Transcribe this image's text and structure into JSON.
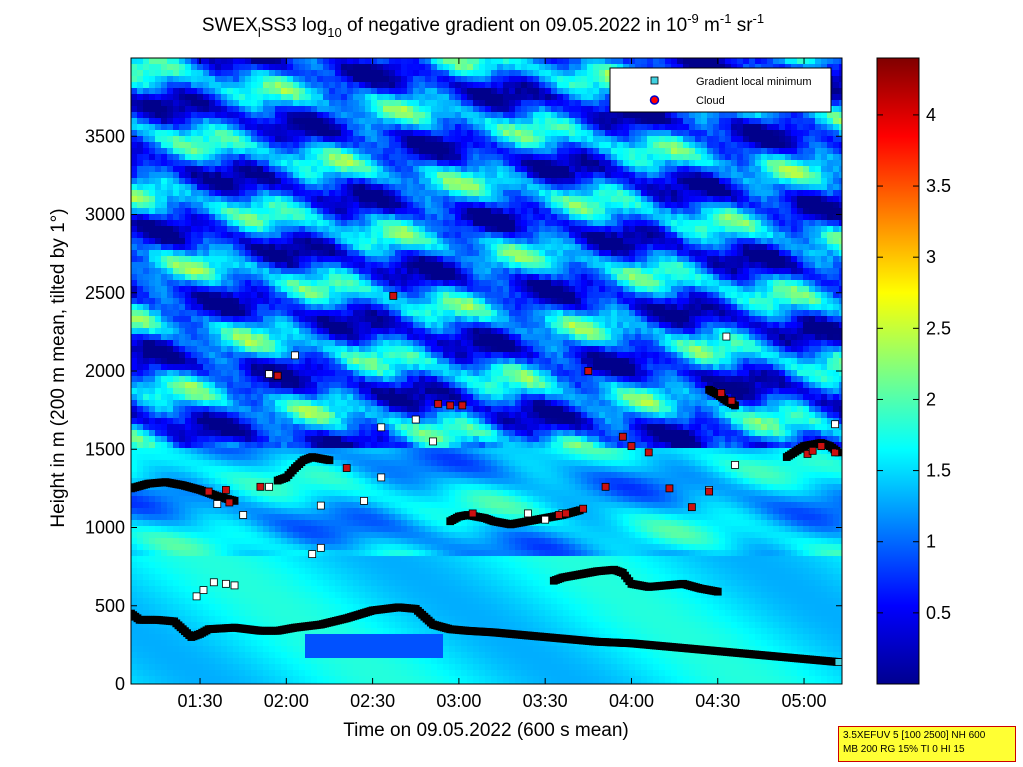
{
  "chart_data": {
    "type": "heatmap",
    "title": {
      "prefix": "SWEX",
      "sub": "l",
      "mid": "SS3 log",
      "base_sub": "10",
      "text": " of negative gradient on 09.05.2022 in 10",
      "exp1": "-9",
      "unit1": " m",
      "exp2": "-1",
      "unit2": " sr",
      "exp3": "-1"
    },
    "xlabel": "Time on 09.05.2022 (600 s mean)",
    "ylabel": "Height in m (200 m mean, tilted by 1°)",
    "x_range_hours": [
      1.1,
      5.22
    ],
    "ylim": [
      0,
      4000
    ],
    "x_ticks": [
      {
        "label": "01:30",
        "value": 1.5
      },
      {
        "label": "02:00",
        "value": 2.0
      },
      {
        "label": "02:30",
        "value": 2.5
      },
      {
        "label": "03:00",
        "value": 3.0
      },
      {
        "label": "03:30",
        "value": 3.5
      },
      {
        "label": "04:00",
        "value": 4.0
      },
      {
        "label": "04:30",
        "value": 4.5
      },
      {
        "label": "05:00",
        "value": 5.0
      }
    ],
    "y_ticks": [
      0,
      500,
      1000,
      1500,
      2000,
      2500,
      3000,
      3500
    ],
    "colorbar": {
      "colormap": "jet",
      "range": [
        0,
        4.4
      ],
      "ticks": [
        "0.5",
        "1",
        "1.5",
        "2",
        "2.5",
        "3",
        "3.5",
        "4"
      ],
      "tick_values": [
        0.5,
        1,
        1.5,
        2,
        2.5,
        3,
        3.5,
        4
      ]
    },
    "legend": {
      "placement": "top-right",
      "entries": [
        {
          "label": "Gradient local minimum",
          "marker": "square",
          "color": "#40d0e0"
        },
        {
          "label": "Cloud",
          "marker": "circle",
          "color": "#ff0000",
          "edge": "#0000cc"
        }
      ]
    },
    "series": [
      {
        "name": "Gradient local minimum",
        "layers": [
          {
            "x": [
              1.1,
              1.15,
              1.25,
              1.35,
              1.45,
              1.5,
              1.55,
              1.7,
              1.85,
              1.95,
              2.05,
              2.2,
              2.35,
              2.5,
              2.65,
              2.75,
              2.85,
              2.95,
              3.05,
              3.2,
              3.4,
              3.6,
              3.8,
              4.0,
              4.2,
              4.4,
              4.6,
              4.8,
              5.0,
              5.2
            ],
            "y": [
              450,
              410,
              410,
              400,
              300,
              320,
              350,
              360,
              340,
              340,
              360,
              380,
              420,
              470,
              490,
              480,
              380,
              350,
              340,
              330,
              310,
              290,
              270,
              260,
              240,
              220,
              200,
              180,
              160,
              140
            ]
          },
          {
            "x": [
              1.1,
              1.2,
              1.3,
              1.4,
              1.5,
              1.6,
              1.7
            ],
            "y": [
              1250,
              1280,
              1290,
              1270,
              1240,
              1200,
              1170
            ]
          },
          {
            "x": [
              1.95,
              2.0,
              2.05,
              2.1,
              2.15,
              2.2,
              2.25
            ],
            "y": [
              1300,
              1320,
              1380,
              1430,
              1450,
              1440,
              1430
            ]
          },
          {
            "x": [
              2.95,
              3.0,
              3.05,
              3.1,
              3.15,
              3.2,
              3.3,
              3.4,
              3.5,
              3.6,
              3.7
            ],
            "y": [
              1040,
              1070,
              1080,
              1070,
              1060,
              1040,
              1020,
              1040,
              1060,
              1080,
              1110
            ]
          },
          {
            "x": [
              3.55,
              3.6,
              3.7,
              3.8,
              3.9,
              3.95,
              4.0,
              4.1,
              4.2,
              4.3,
              4.4,
              4.5
            ],
            "y": [
              660,
              680,
              700,
              720,
              730,
              710,
              640,
              620,
              630,
              640,
              610,
              590
            ]
          },
          {
            "x": [
              4.45,
              4.5,
              4.55,
              4.6
            ],
            "y": [
              1880,
              1850,
              1810,
              1780
            ]
          },
          {
            "x": [
              4.9,
              5.0,
              5.1,
              5.15,
              5.2
            ],
            "y": [
              1450,
              1520,
              1540,
              1520,
              1480
            ]
          },
          {
            "x": [
              1.48,
              1.52,
              1.58,
              1.65,
              1.7,
              1.75,
              2.15,
              2.2,
              2.55,
              2.75,
              2.85,
              3.4,
              3.5,
              3.6,
              4.45,
              5.18,
              1.9,
              2.45,
              2.2,
              1.6,
              1.9,
              2.05,
              2.55,
              4.55,
              4.6
            ],
            "y": [
              560,
              600,
              650,
              640,
              630,
              1080,
              830,
              870,
              1320,
              1690,
              1550,
              1090,
              1050,
              1090,
              1240,
              1660,
              1260,
              1170,
              1140,
              1150,
              1980,
              2100,
              1640,
              2220,
              1400
            ]
          }
        ]
      },
      {
        "name": "Cloud",
        "x": [
          1.55,
          1.65,
          1.67,
          1.85,
          1.95,
          2.35,
          2.62,
          2.88,
          2.95,
          3.02,
          3.08,
          3.58,
          3.62,
          3.72,
          3.75,
          3.85,
          3.95,
          4.0,
          4.1,
          4.22,
          4.35,
          4.45,
          4.52,
          4.58,
          5.02,
          5.05,
          5.1,
          5.18
        ],
        "y": [
          1230,
          1240,
          1160,
          1260,
          1970,
          1380,
          2480,
          1790,
          1780,
          1780,
          1090,
          1080,
          1090,
          1120,
          2000,
          1260,
          1580,
          1520,
          1480,
          1250,
          1130,
          1230,
          1860,
          1810,
          1470,
          1490,
          1520,
          1480
        ]
      }
    ]
  },
  "info_box": {
    "line1": "3.5XEFUV 5 [100 2500] NH 600",
    "line2": "MB 200 RG 15% TI 0 HI 15",
    "bg_color": "#ffff33",
    "border_color": "#cc0000"
  }
}
